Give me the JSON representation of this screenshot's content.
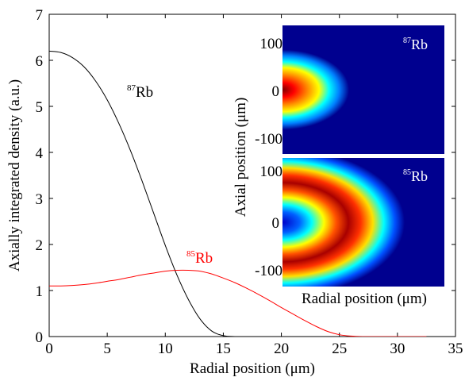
{
  "chart_data": {
    "type": "line",
    "xlabel": "Radial position (μm)",
    "ylabel": "Axially integrated density (a.u.)",
    "xlim": [
      0,
      35
    ],
    "ylim": [
      0,
      7
    ],
    "xticks": [
      0,
      5,
      10,
      15,
      20,
      25,
      30,
      35
    ],
    "yticks": [
      0,
      1,
      2,
      3,
      4,
      5,
      6,
      7
    ],
    "grid": false,
    "series": [
      {
        "name": "87Rb",
        "label_sup": "87",
        "label_main": "Rb",
        "color": "#000000",
        "x": [
          0,
          1,
          2,
          3,
          4,
          5,
          6,
          7,
          8,
          9,
          10,
          11,
          12,
          13,
          14,
          15,
          16,
          17,
          18,
          19,
          20,
          21,
          22,
          23,
          24,
          25,
          26,
          27,
          28,
          29,
          30,
          31,
          32.5
        ],
        "y": [
          6.2,
          6.17,
          6.06,
          5.86,
          5.55,
          5.14,
          4.63,
          4.04,
          3.38,
          2.68,
          1.98,
          1.34,
          0.8,
          0.38,
          0.12,
          0.02,
          0,
          0,
          0,
          0,
          0,
          0,
          0,
          0,
          0,
          0,
          0,
          0,
          0,
          0,
          0,
          0,
          0
        ]
      },
      {
        "name": "85Rb",
        "label_sup": "85",
        "label_main": "Rb",
        "color": "#ff0000",
        "x": [
          0,
          1,
          2,
          3,
          4,
          5,
          6,
          7,
          8,
          9,
          10,
          11,
          12,
          13,
          14,
          15,
          16,
          17,
          18,
          19,
          20,
          21,
          22,
          23,
          24,
          25,
          26,
          27,
          28,
          29,
          30,
          31,
          32.5
        ],
        "y": [
          1.1,
          1.1,
          1.11,
          1.13,
          1.16,
          1.2,
          1.24,
          1.29,
          1.34,
          1.38,
          1.42,
          1.44,
          1.44,
          1.42,
          1.36,
          1.27,
          1.17,
          1.05,
          0.92,
          0.78,
          0.63,
          0.49,
          0.35,
          0.22,
          0.11,
          0.04,
          0.01,
          0,
          0,
          0,
          0,
          0,
          0
        ]
      }
    ],
    "inset": {
      "type": "heatmap",
      "xlabel": "Radial position (μm)",
      "ylabel": "Axial position (μm)",
      "yticks": [
        -100,
        0,
        100
      ],
      "panels": [
        {
          "label_sup": "87",
          "label_main": "Rb",
          "shape": "ellipse"
        },
        {
          "label_sup": "85",
          "label_main": "Rb",
          "shape": "shell"
        }
      ]
    }
  }
}
